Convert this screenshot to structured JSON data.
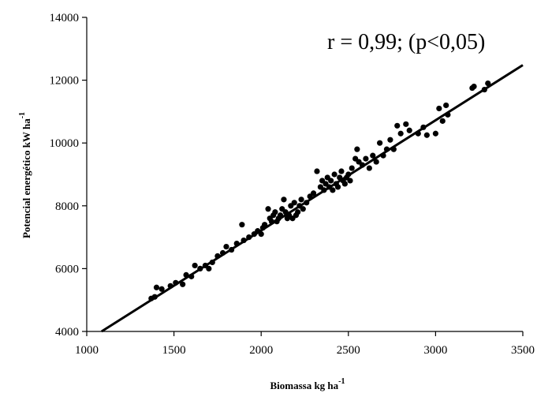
{
  "chart_data": {
    "type": "scatter",
    "xlabel": "Biomassa kg ha",
    "xlabel_sup": "-1",
    "ylabel": "Potencial energético kW ha",
    "ylabel_sup": "-1",
    "annotation": "r = 0,99; (p<0,05)",
    "xlim": [
      1000,
      3500
    ],
    "ylim": [
      4000,
      14000
    ],
    "xticks": [
      1000,
      1500,
      2000,
      2500,
      3000,
      3500
    ],
    "yticks": [
      4000,
      6000,
      8000,
      10000,
      12000,
      14000
    ],
    "xtick_labels": [
      "1000",
      "1500",
      "2000",
      "2500",
      "3000",
      "3500"
    ],
    "ytick_labels": [
      "4000",
      "6000",
      "8000",
      "10000",
      "12000",
      "14000"
    ],
    "grid": false,
    "trendline": {
      "x": [
        1085,
        3500
      ],
      "y": [
        4000,
        12480
      ]
    },
    "series": [
      {
        "color": "#000000",
        "x": [
          1370,
          1390,
          1400,
          1430,
          1480,
          1510,
          1550,
          1570,
          1600,
          1620,
          1650,
          1680,
          1700,
          1720,
          1750,
          1780,
          1800,
          1830,
          1860,
          1890,
          1900,
          1930,
          1960,
          1980,
          2000,
          2010,
          2020,
          2040,
          2050,
          2060,
          2070,
          2080,
          2090,
          2100,
          2110,
          2120,
          2130,
          2140,
          2150,
          2160,
          2170,
          2180,
          2190,
          2200,
          2210,
          2220,
          2230,
          2240,
          2260,
          2280,
          2300,
          2320,
          2340,
          2350,
          2360,
          2370,
          2380,
          2390,
          2400,
          2410,
          2420,
          2430,
          2440,
          2450,
          2460,
          2470,
          2480,
          2490,
          2500,
          2510,
          2520,
          2540,
          2550,
          2560,
          2580,
          2600,
          2620,
          2640,
          2660,
          2680,
          2700,
          2720,
          2740,
          2760,
          2780,
          2800,
          2830,
          2850,
          2900,
          2930,
          2950,
          3000,
          3020,
          3040,
          3060,
          3070,
          3210,
          3220,
          3280,
          3300
        ],
        "y": [
          5050,
          5100,
          5400,
          5350,
          5450,
          5550,
          5500,
          5800,
          5750,
          6100,
          6000,
          6100,
          6000,
          6200,
          6400,
          6500,
          6700,
          6600,
          6800,
          7400,
          6900,
          7000,
          7100,
          7200,
          7100,
          7300,
          7400,
          7900,
          7600,
          7500,
          7700,
          7800,
          7500,
          7600,
          7700,
          7900,
          8200,
          7800,
          7600,
          7700,
          8000,
          7600,
          8100,
          7700,
          7800,
          8000,
          8200,
          7900,
          8100,
          8300,
          8400,
          9100,
          8600,
          8800,
          8500,
          8700,
          8900,
          8600,
          8800,
          8500,
          9000,
          8700,
          8600,
          8900,
          9100,
          8800,
          8700,
          8900,
          9000,
          8800,
          9200,
          9500,
          9800,
          9400,
          9300,
          9500,
          9200,
          9600,
          9400,
          10000,
          9600,
          9800,
          10100,
          9800,
          10550,
          10300,
          10600,
          10400,
          10300,
          10500,
          10250,
          10300,
          11100,
          10700,
          11200,
          10900,
          11750,
          11800,
          11700,
          11900
        ]
      }
    ]
  }
}
